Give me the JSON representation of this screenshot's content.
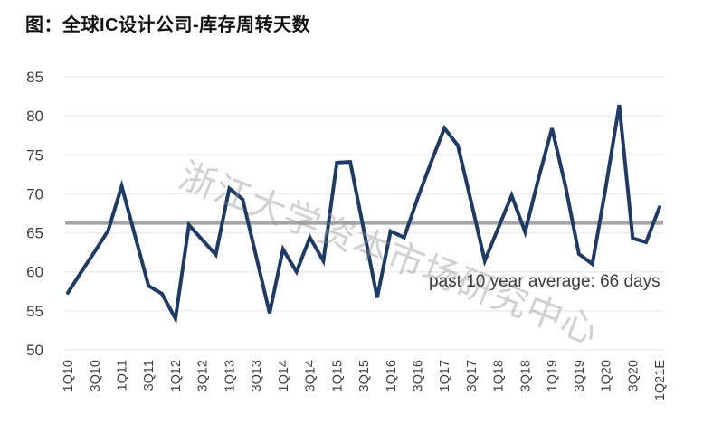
{
  "title": "图：全球IC设计公司-库存周转天数",
  "watermark": "浙江大学资本市场研究中心",
  "annotation": "past 10 year average:  66 days",
  "colors": {
    "line": "#1e3a66",
    "average_line": "#a6a6a6",
    "gridline": "#ebebeb",
    "axis_label": "#3f3f3f",
    "title": "#111111",
    "annotation": "#3d3d3d",
    "watermark": "#919191"
  },
  "chart_data": {
    "type": "line",
    "title": "图：全球IC设计公司-库存周转天数",
    "categories": [
      "1Q10",
      "2Q10",
      "3Q10",
      "4Q10",
      "1Q11",
      "2Q11",
      "3Q11",
      "4Q11",
      "1Q12",
      "2Q12",
      "3Q12",
      "4Q12",
      "1Q13",
      "2Q13",
      "3Q13",
      "4Q13",
      "1Q14",
      "2Q14",
      "3Q14",
      "4Q14",
      "1Q15",
      "2Q15",
      "3Q15",
      "4Q15",
      "1Q16",
      "2Q16",
      "3Q16",
      "4Q16",
      "1Q17",
      "2Q17",
      "3Q17",
      "4Q17",
      "1Q18",
      "2Q18",
      "3Q18",
      "4Q18",
      "1Q19",
      "2Q19",
      "3Q19",
      "4Q19",
      "1Q20",
      "2Q20",
      "3Q20",
      "4Q20",
      "1Q21E"
    ],
    "x_tick_labels_shown": [
      "1Q10",
      "3Q10",
      "1Q11",
      "3Q11",
      "1Q12",
      "3Q12",
      "1Q13",
      "3Q13",
      "1Q14",
      "3Q14",
      "1Q15",
      "3Q15",
      "1Q16",
      "3Q16",
      "1Q17",
      "3Q17",
      "1Q18",
      "3Q18",
      "1Q19",
      "3Q19",
      "1Q20",
      "3Q20",
      "1Q21E"
    ],
    "series": [
      {
        "name": "库存周转天数",
        "values": [
          57.3,
          60,
          62.6,
          65.3,
          71,
          64.6,
          58.2,
          57.2,
          54,
          66,
          64.1,
          62.2,
          70.7,
          69.3,
          62,
          54.7,
          62.9,
          60,
          64.4,
          61.4,
          74,
          74.1,
          65.4,
          56.7,
          65.2,
          64.4,
          69.4,
          74,
          78.4,
          76.2,
          68.9,
          61.4,
          65.6,
          69.8,
          65.1,
          72,
          78.4,
          71,
          62.3,
          61,
          70.8,
          81.4,
          64.3,
          63.8,
          68.3
        ]
      }
    ],
    "average_line": {
      "value": 66.3,
      "label": "past 10 year average:  66 days"
    },
    "ylim": [
      50,
      85
    ],
    "yticks": [
      50,
      55,
      60,
      65,
      70,
      75,
      80,
      85
    ],
    "grid": true,
    "legend": false
  }
}
